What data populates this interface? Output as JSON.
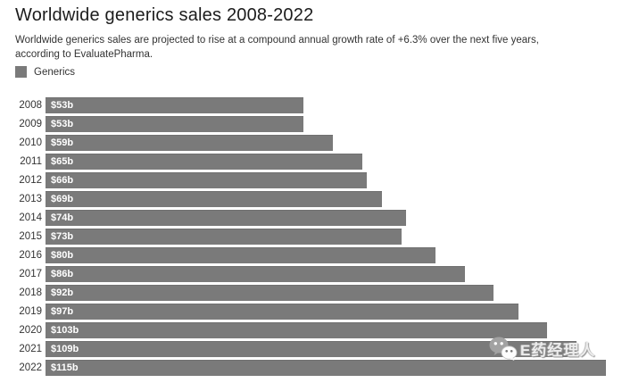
{
  "header": {
    "title": "Worldwide generics sales 2008-2022",
    "subtitle": "Worldwide generics sales are projected to rise at a compound annual growth rate of +6.3% over the next five years, according to EvaluatePharma."
  },
  "legend": {
    "label": "Generics",
    "swatch_color": "#7a7a7a"
  },
  "chart_data": {
    "type": "bar",
    "orientation": "horizontal",
    "title": "Worldwide generics sales 2008-2022",
    "series_name": "Generics",
    "categories": [
      "2008",
      "2009",
      "2010",
      "2011",
      "2012",
      "2013",
      "2014",
      "2015",
      "2016",
      "2017",
      "2018",
      "2019",
      "2020",
      "2021",
      "2022"
    ],
    "values": [
      53,
      53,
      59,
      65,
      66,
      69,
      74,
      73,
      80,
      86,
      92,
      97,
      103,
      109,
      115
    ],
    "value_labels": [
      "$53b",
      "$53b",
      "$59b",
      "$65b",
      "$66b",
      "$69b",
      "$74b",
      "$73b",
      "$80b",
      "$86b",
      "$92b",
      "$97b",
      "$103b",
      "$109b",
      "$115b"
    ],
    "bar_color": "#7a7a7a",
    "value_label_color": "#ffffff",
    "xlim": [
      0,
      118
    ],
    "grid": false,
    "legend_position": "top-left",
    "annotation": "+6.3% CAGR projected over next five years"
  },
  "watermark": {
    "text": "E药经理人",
    "icon": "wechat-logo-icon"
  }
}
